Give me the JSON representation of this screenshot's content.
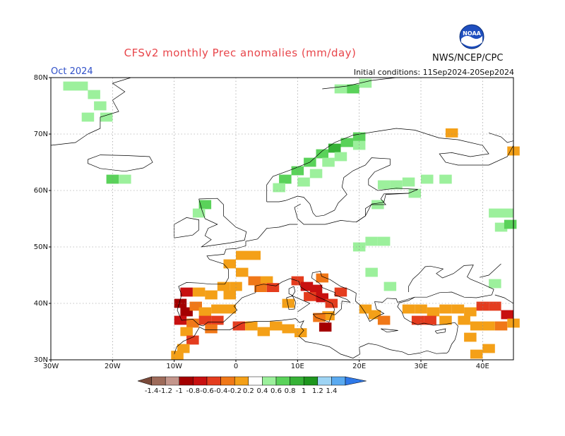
{
  "title": "CFSv2 monthly Prec anomalies (mm/day)",
  "period": "Oct 2024",
  "initial_conditions": "Initial conditions: 11Sep2024-20Sep2024",
  "agency": "NWS/NCEP/CPC",
  "logo_text": "NOAA",
  "map": {
    "lon_range": [
      -30,
      45
    ],
    "lat_range": [
      30,
      80
    ],
    "lon_ticks": [
      "30W",
      "20W",
      "10W",
      "0",
      "10E",
      "20E",
      "30E",
      "40E"
    ],
    "lat_ticks": [
      "80N",
      "70N",
      "60N",
      "50N",
      "40N",
      "30N"
    ],
    "lon_tick_values": [
      -30,
      -20,
      -10,
      0,
      10,
      20,
      30,
      40
    ],
    "lat_tick_values": [
      80,
      70,
      60,
      50,
      40,
      30
    ]
  },
  "colorbar": {
    "labels": [
      "-1.4",
      "-1.2",
      "-1",
      "-0.8",
      "-0.6",
      "-0.4",
      "-0.2",
      "0.2",
      "0.4",
      "0.6",
      "0.8",
      "1",
      "1.2",
      "1.4"
    ],
    "colors": [
      "#7a4a3a",
      "#9e6b5a",
      "#c4968c",
      "#a40000",
      "#c81010",
      "#e43c1e",
      "#f07818",
      "#f4a018",
      "#ffffff",
      "#9cf09c",
      "#5ad25a",
      "#36b236",
      "#1e961e",
      "#9ed4f4",
      "#5aaaf0",
      "#2e78e8"
    ]
  },
  "anomalies": [
    {
      "lon": -27,
      "lat": 78.5,
      "c": "#9cf09c"
    },
    {
      "lon": -25,
      "lat": 78.5,
      "c": "#9cf09c"
    },
    {
      "lon": -23,
      "lat": 77,
      "c": "#9cf09c"
    },
    {
      "lon": -22,
      "lat": 75,
      "c": "#9cf09c"
    },
    {
      "lon": -24,
      "lat": 73,
      "c": "#9cf09c"
    },
    {
      "lon": -21,
      "lat": 73,
      "c": "#9cf09c"
    },
    {
      "lon": -20,
      "lat": 62,
      "c": "#5ad25a"
    },
    {
      "lon": -18,
      "lat": 62,
      "c": "#9cf09c"
    },
    {
      "lon": 17,
      "lat": 78,
      "c": "#9cf09c"
    },
    {
      "lon": 19,
      "lat": 78,
      "c": "#5ad25a"
    },
    {
      "lon": 21,
      "lat": 79,
      "c": "#9cf09c"
    },
    {
      "lon": 8,
      "lat": 62,
      "c": "#5ad25a"
    },
    {
      "lon": 10,
      "lat": 63.5,
      "c": "#5ad25a"
    },
    {
      "lon": 12,
      "lat": 65,
      "c": "#5ad25a"
    },
    {
      "lon": 14,
      "lat": 66.5,
      "c": "#5ad25a"
    },
    {
      "lon": 16,
      "lat": 67.5,
      "c": "#36b236"
    },
    {
      "lon": 18,
      "lat": 68.5,
      "c": "#5ad25a"
    },
    {
      "lon": 20,
      "lat": 69.5,
      "c": "#5ad25a"
    },
    {
      "lon": 15,
      "lat": 65,
      "c": "#9cf09c"
    },
    {
      "lon": 13,
      "lat": 63,
      "c": "#9cf09c"
    },
    {
      "lon": 11,
      "lat": 61.5,
      "c": "#9cf09c"
    },
    {
      "lon": 17,
      "lat": 66,
      "c": "#9cf09c"
    },
    {
      "lon": 20,
      "lat": 68,
      "c": "#9cf09c"
    },
    {
      "lon": 7,
      "lat": 60.5,
      "c": "#9cf09c"
    },
    {
      "lon": -5,
      "lat": 57.5,
      "c": "#5ad25a"
    },
    {
      "lon": -6,
      "lat": 56,
      "c": "#9cf09c"
    },
    {
      "lon": 24,
      "lat": 61,
      "c": "#9cf09c"
    },
    {
      "lon": 26,
      "lat": 61,
      "c": "#9cf09c"
    },
    {
      "lon": 28,
      "lat": 61.5,
      "c": "#9cf09c"
    },
    {
      "lon": 31,
      "lat": 62,
      "c": "#9cf09c"
    },
    {
      "lon": 34,
      "lat": 62,
      "c": "#9cf09c"
    },
    {
      "lon": 29,
      "lat": 59.5,
      "c": "#9cf09c"
    },
    {
      "lon": 23,
      "lat": 57.5,
      "c": "#9cf09c"
    },
    {
      "lon": 42,
      "lat": 56,
      "c": "#9cf09c"
    },
    {
      "lon": 44,
      "lat": 56,
      "c": "#9cf09c"
    },
    {
      "lon": 43,
      "lat": 53.5,
      "c": "#9cf09c"
    },
    {
      "lon": 44.5,
      "lat": 54,
      "c": "#5ad25a"
    },
    {
      "lon": 22,
      "lat": 51,
      "c": "#9cf09c"
    },
    {
      "lon": 24,
      "lat": 51,
      "c": "#9cf09c"
    },
    {
      "lon": 20,
      "lat": 50,
      "c": "#9cf09c"
    },
    {
      "lon": 22,
      "lat": 45.5,
      "c": "#9cf09c"
    },
    {
      "lon": 25,
      "lat": 43,
      "c": "#9cf09c"
    },
    {
      "lon": 42,
      "lat": 43.5,
      "c": "#9cf09c"
    },
    {
      "lon": 1,
      "lat": 48.5,
      "c": "#f4a018"
    },
    {
      "lon": 3,
      "lat": 48.5,
      "c": "#f4a018"
    },
    {
      "lon": -1,
      "lat": 47,
      "c": "#f4a018"
    },
    {
      "lon": 1,
      "lat": 45.5,
      "c": "#f4a018"
    },
    {
      "lon": 3,
      "lat": 44,
      "c": "#f07818"
    },
    {
      "lon": 5,
      "lat": 44,
      "c": "#f4a018"
    },
    {
      "lon": 6,
      "lat": 42.8,
      "c": "#e43c1e"
    },
    {
      "lon": 4,
      "lat": 42.8,
      "c": "#f07818"
    },
    {
      "lon": 0,
      "lat": 43,
      "c": "#f4a018"
    },
    {
      "lon": -2,
      "lat": 43,
      "c": "#f4a018"
    },
    {
      "lon": -8,
      "lat": 42,
      "c": "#c81010"
    },
    {
      "lon": -6,
      "lat": 42,
      "c": "#f4a018"
    },
    {
      "lon": -4,
      "lat": 41.5,
      "c": "#f4a018"
    },
    {
      "lon": -1,
      "lat": 41.5,
      "c": "#f4a018"
    },
    {
      "lon": -9,
      "lat": 40,
      "c": "#a40000"
    },
    {
      "lon": -8,
      "lat": 38.5,
      "c": "#a40000"
    },
    {
      "lon": -9,
      "lat": 37,
      "c": "#c81010"
    },
    {
      "lon": -6.5,
      "lat": 39.5,
      "c": "#f07818"
    },
    {
      "lon": -5,
      "lat": 38.5,
      "c": "#f4a018"
    },
    {
      "lon": -3,
      "lat": 39,
      "c": "#f4a018"
    },
    {
      "lon": -1,
      "lat": 39,
      "c": "#f4a018"
    },
    {
      "lon": -5,
      "lat": 37,
      "c": "#e43c1e"
    },
    {
      "lon": -3,
      "lat": 37,
      "c": "#e43c1e"
    },
    {
      "lon": -7,
      "lat": 36.5,
      "c": "#f07818"
    },
    {
      "lon": -8,
      "lat": 35,
      "c": "#f4a018"
    },
    {
      "lon": -7,
      "lat": 33.5,
      "c": "#e43c1e"
    },
    {
      "lon": -8.5,
      "lat": 32,
      "c": "#f4a018"
    },
    {
      "lon": -9.5,
      "lat": 30.8,
      "c": "#f4a018"
    },
    {
      "lon": -4,
      "lat": 35.5,
      "c": "#f07818"
    },
    {
      "lon": 0.5,
      "lat": 36,
      "c": "#e43c1e"
    },
    {
      "lon": 2.5,
      "lat": 36,
      "c": "#f4a018"
    },
    {
      "lon": 4.5,
      "lat": 35,
      "c": "#f4a018"
    },
    {
      "lon": 6.5,
      "lat": 36,
      "c": "#f4a018"
    },
    {
      "lon": 8.5,
      "lat": 35.5,
      "c": "#f4a018"
    },
    {
      "lon": 10.5,
      "lat": 34.8,
      "c": "#f4a018"
    },
    {
      "lon": 10,
      "lat": 44,
      "c": "#e43c1e"
    },
    {
      "lon": 11.5,
      "lat": 43,
      "c": "#c81010"
    },
    {
      "lon": 13,
      "lat": 42.5,
      "c": "#c81010"
    },
    {
      "lon": 12,
      "lat": 41.2,
      "c": "#e43c1e"
    },
    {
      "lon": 14,
      "lat": 41,
      "c": "#c81010"
    },
    {
      "lon": 15.5,
      "lat": 40,
      "c": "#e43c1e"
    },
    {
      "lon": 14,
      "lat": 44.5,
      "c": "#f07818"
    },
    {
      "lon": 17,
      "lat": 42,
      "c": "#e43c1e"
    },
    {
      "lon": 15,
      "lat": 37.8,
      "c": "#f4a018"
    },
    {
      "lon": 13.5,
      "lat": 37.5,
      "c": "#f07818"
    },
    {
      "lon": 14.5,
      "lat": 35.8,
      "c": "#a40000"
    },
    {
      "lon": 8.5,
      "lat": 40,
      "c": "#f4a018"
    },
    {
      "lon": 21,
      "lat": 39,
      "c": "#f4a018"
    },
    {
      "lon": 22.5,
      "lat": 38,
      "c": "#f4a018"
    },
    {
      "lon": 24,
      "lat": 37,
      "c": "#f07818"
    },
    {
      "lon": 28,
      "lat": 39,
      "c": "#f4a018"
    },
    {
      "lon": 30,
      "lat": 39,
      "c": "#f4a018"
    },
    {
      "lon": 32,
      "lat": 38.5,
      "c": "#f4a018"
    },
    {
      "lon": 34,
      "lat": 39,
      "c": "#f4a018"
    },
    {
      "lon": 36,
      "lat": 39,
      "c": "#f4a018"
    },
    {
      "lon": 38,
      "lat": 38.5,
      "c": "#f4a018"
    },
    {
      "lon": 40,
      "lat": 39.5,
      "c": "#e43c1e"
    },
    {
      "lon": 42,
      "lat": 39.5,
      "c": "#e43c1e"
    },
    {
      "lon": 44,
      "lat": 38,
      "c": "#c81010"
    },
    {
      "lon": 29.5,
      "lat": 37,
      "c": "#e43c1e"
    },
    {
      "lon": 31.5,
      "lat": 37,
      "c": "#e43c1e"
    },
    {
      "lon": 34,
      "lat": 37,
      "c": "#f4a018"
    },
    {
      "lon": 37,
      "lat": 37,
      "c": "#f4a018"
    },
    {
      "lon": 39,
      "lat": 36,
      "c": "#f4a018"
    },
    {
      "lon": 41,
      "lat": 36,
      "c": "#f4a018"
    },
    {
      "lon": 43,
      "lat": 36,
      "c": "#f07818"
    },
    {
      "lon": 45,
      "lat": 36.5,
      "c": "#f4a018"
    },
    {
      "lon": 38,
      "lat": 34,
      "c": "#f4a018"
    },
    {
      "lon": 41,
      "lat": 32,
      "c": "#f4a018"
    },
    {
      "lon": 39,
      "lat": 31,
      "c": "#f4a018"
    },
    {
      "lon": 35,
      "lat": 70.2,
      "c": "#f4a018"
    },
    {
      "lon": 45,
      "lat": 67,
      "c": "#f4a018"
    }
  ]
}
